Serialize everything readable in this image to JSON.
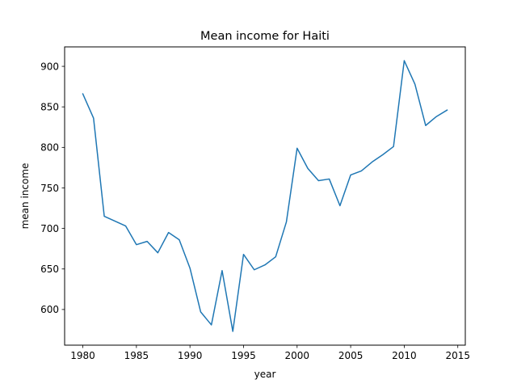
{
  "chart_data": {
    "type": "line",
    "title": "Mean income for Haiti",
    "xlabel": "year",
    "ylabel": "mean income",
    "xlim": [
      1978.3,
      2015.7
    ],
    "ylim": [
      556,
      924
    ],
    "xticks": [
      1980,
      1985,
      1990,
      1995,
      2000,
      2005,
      2010,
      2015
    ],
    "yticks": [
      600,
      650,
      700,
      750,
      800,
      850,
      900
    ],
    "grid": false,
    "legend": "none",
    "series": [
      {
        "color": "#1f77b4",
        "x": [
          1980,
          1981,
          1982,
          1983,
          1984,
          1985,
          1986,
          1987,
          1988,
          1989,
          1990,
          1991,
          1992,
          1993,
          1994,
          1995,
          1996,
          1997,
          1998,
          1999,
          2000,
          2001,
          2002,
          2003,
          2004,
          2005,
          2006,
          2007,
          2008,
          2009,
          2010,
          2011,
          2012,
          2013,
          2014
        ],
        "y": [
          866,
          836,
          715,
          709,
          703,
          680,
          684,
          670,
          695,
          686,
          651,
          597,
          581,
          648,
          573,
          668,
          649,
          655,
          665,
          708,
          799,
          774,
          759,
          761,
          728,
          766,
          771,
          782,
          791,
          801,
          907,
          878,
          827,
          838,
          846
        ]
      }
    ]
  }
}
